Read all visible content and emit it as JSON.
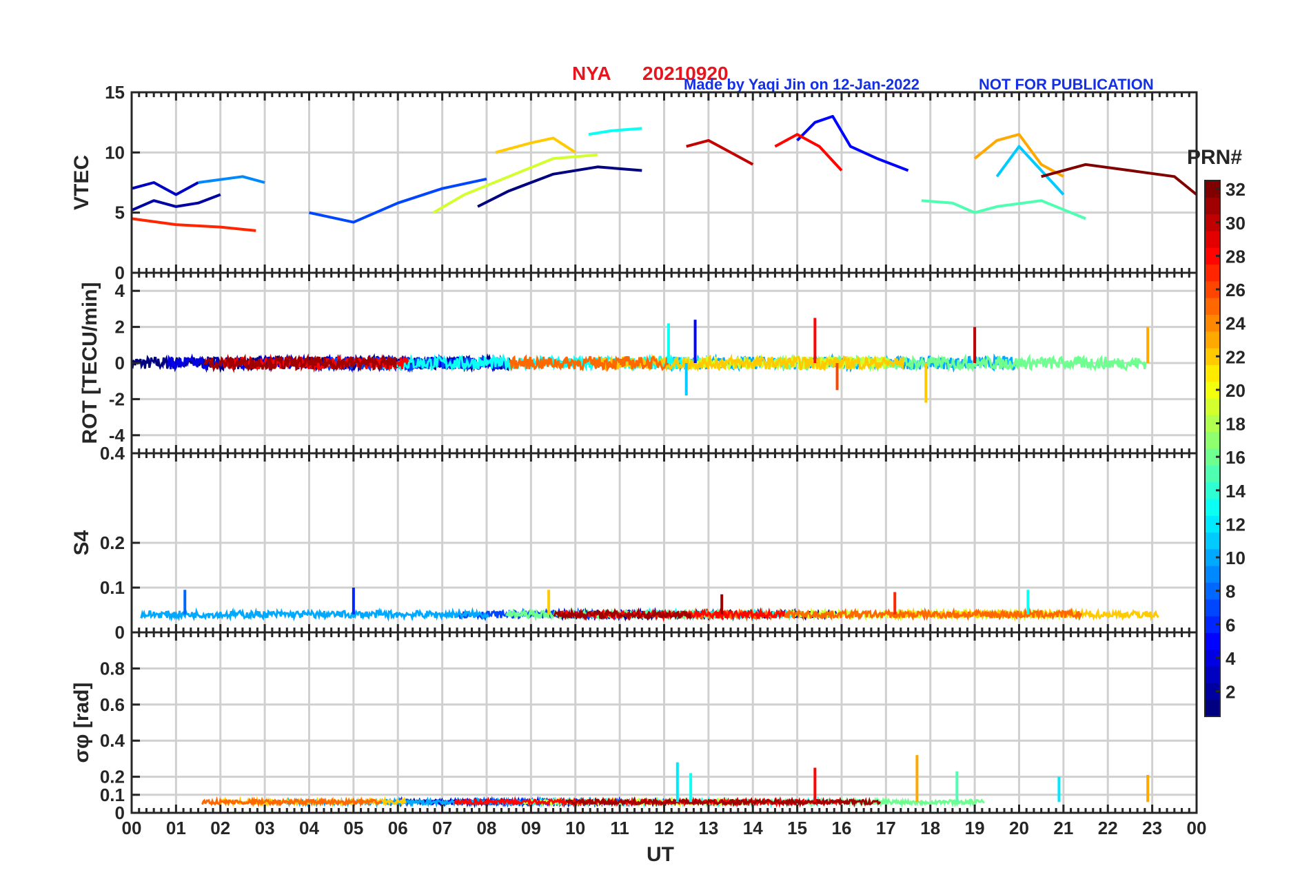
{
  "header": {
    "station": "NYA",
    "date": "20210920",
    "credit": "Made by Yaqi Jin on 12-Jan-2022",
    "notice": "NOT FOR PUBLICATION"
  },
  "colorbar": {
    "title": "PRN#",
    "range": [
      1,
      32
    ],
    "ticks": [
      "2",
      "4",
      "6",
      "8",
      "10",
      "12",
      "14",
      "16",
      "18",
      "20",
      "22",
      "24",
      "26",
      "28",
      "30",
      "32"
    ]
  },
  "chart_data": [
    {
      "type": "line",
      "panel": "VTEC",
      "ylabel": "VTEC",
      "ylim": [
        0,
        15
      ],
      "yticks": [
        "0",
        "5",
        "10",
        "15"
      ],
      "xlabel": "UT",
      "xlim": [
        0,
        24
      ],
      "xticks": [
        "00",
        "01",
        "02",
        "03",
        "04",
        "05",
        "06",
        "07",
        "08",
        "09",
        "10",
        "11",
        "12",
        "13",
        "14",
        "15",
        "16",
        "17",
        "18",
        "19",
        "20",
        "21",
        "22",
        "23",
        "00"
      ],
      "grid": true,
      "series": [
        {
          "name": "PRN 1",
          "prn": 1,
          "x": [
            7.8,
            8.5,
            9.5,
            10.5,
            11.5
          ],
          "values": [
            5.5,
            6.8,
            8.2,
            8.8,
            8.5
          ]
        },
        {
          "name": "PRN 2",
          "prn": 2,
          "x": [
            0.0,
            0.5,
            1.0,
            1.5,
            2.0
          ],
          "values": [
            5.2,
            6.0,
            5.5,
            5.8,
            6.5
          ]
        },
        {
          "name": "PRN 3",
          "prn": 3,
          "x": [
            0.0,
            0.5,
            1.0,
            1.5
          ],
          "values": [
            7.0,
            7.5,
            6.5,
            7.5
          ]
        },
        {
          "name": "PRN 5",
          "prn": 5,
          "x": [
            15.0,
            15.4,
            15.8,
            16.2,
            16.8,
            17.5
          ],
          "values": [
            11.0,
            12.5,
            13.0,
            10.5,
            9.5,
            8.5
          ]
        },
        {
          "name": "PRN 7",
          "prn": 7,
          "x": [
            4.0,
            5.0,
            6.0,
            7.0,
            8.0
          ],
          "values": [
            5.0,
            4.2,
            5.8,
            7.0,
            7.8
          ]
        },
        {
          "name": "PRN 9",
          "prn": 9,
          "x": [
            1.5,
            2.5,
            3.0
          ],
          "values": [
            7.5,
            8.0,
            7.5
          ]
        },
        {
          "name": "PRN 11",
          "prn": 11,
          "x": [
            19.5,
            20.0,
            20.5,
            21.0
          ],
          "values": [
            8.0,
            10.5,
            8.5,
            6.5
          ]
        },
        {
          "name": "PRN 13",
          "prn": 13,
          "x": [
            10.3,
            10.8,
            11.5
          ],
          "values": [
            11.5,
            11.8,
            12.0
          ]
        },
        {
          "name": "PRN 15",
          "prn": 15,
          "x": [
            17.8,
            18.5,
            19.0,
            19.5,
            20.5,
            21.5
          ],
          "values": [
            6.0,
            5.8,
            5.0,
            5.5,
            6.0,
            4.5
          ]
        },
        {
          "name": "PRN 19",
          "prn": 19,
          "x": [
            6.8,
            7.5,
            8.5,
            9.5,
            10.5
          ],
          "values": [
            5.0,
            6.5,
            8.0,
            9.5,
            9.8
          ]
        },
        {
          "name": "PRN 22",
          "prn": 22,
          "x": [
            8.2,
            9.0,
            9.5,
            10.0
          ],
          "values": [
            10.0,
            10.8,
            11.2,
            10.0
          ]
        },
        {
          "name": "PRN 23",
          "prn": 23,
          "x": [
            19.0,
            19.5,
            20.0,
            20.5,
            21.0
          ],
          "values": [
            9.5,
            11.0,
            11.5,
            9.0,
            8.0
          ]
        },
        {
          "name": "PRN 27",
          "prn": 27,
          "x": [
            0.0,
            1.0,
            2.0,
            2.8
          ],
          "values": [
            4.5,
            4.0,
            3.8,
            3.5
          ]
        },
        {
          "name": "PRN 28",
          "prn": 28,
          "x": [
            14.5,
            15.0,
            15.5,
            16.0
          ],
          "values": [
            10.5,
            11.5,
            10.5,
            8.5
          ]
        },
        {
          "name": "PRN 30",
          "prn": 30,
          "x": [
            12.5,
            13.0,
            13.5,
            14.0
          ],
          "values": [
            10.5,
            11.0,
            10.0,
            9.0
          ]
        },
        {
          "name": "PRN 32",
          "prn": 32,
          "x": [
            20.5,
            21.5,
            22.5,
            23.5,
            24.0
          ],
          "values": [
            8.0,
            9.0,
            8.5,
            8.0,
            6.5
          ]
        }
      ]
    },
    {
      "type": "line",
      "panel": "ROT",
      "ylabel": "ROT [TECU/min]",
      "ylim": [
        -5,
        5
      ],
      "yticks": [
        "-4",
        "-2",
        "0",
        "2",
        "4"
      ],
      "xlim": [
        0,
        24
      ],
      "grid": true,
      "note": "ROT fluctuates around 0 for all PRNs; largest spikes listed as x/values pairs",
      "series": [
        {
          "name": "PRN 5",
          "prn": 5,
          "x": [
            12.7
          ],
          "values": [
            2.4
          ]
        },
        {
          "name": "PRN 13",
          "prn": 13,
          "x": [
            12.1
          ],
          "values": [
            2.2
          ]
        },
        {
          "name": "PRN 11",
          "prn": 11,
          "x": [
            12.5
          ],
          "values": [
            -1.8
          ]
        },
        {
          "name": "PRN 28",
          "prn": 28,
          "x": [
            15.4
          ],
          "values": [
            2.5
          ]
        },
        {
          "name": "PRN 26",
          "prn": 26,
          "x": [
            15.9
          ],
          "values": [
            -1.5
          ]
        },
        {
          "name": "PRN 22",
          "prn": 22,
          "x": [
            17.9
          ],
          "values": [
            -2.2
          ]
        },
        {
          "name": "PRN 30",
          "prn": 30,
          "x": [
            19.0
          ],
          "values": [
            2.0
          ]
        },
        {
          "name": "PRN 23",
          "prn": 23,
          "x": [
            22.9
          ],
          "values": [
            2.0
          ]
        }
      ]
    },
    {
      "type": "line",
      "panel": "S4",
      "ylabel": "S4",
      "ylim": [
        0,
        0.4
      ],
      "yticks": [
        "0",
        "0.1",
        "0.2",
        "0.4"
      ],
      "xlim": [
        0,
        24
      ],
      "grid": true,
      "note": "S4 background level about 0.03-0.05 for all PRNs; peaks listed",
      "series": [
        {
          "name": "PRN 8",
          "prn": 8,
          "x": [
            1.2
          ],
          "values": [
            0.095
          ]
        },
        {
          "name": "PRN 6",
          "prn": 6,
          "x": [
            5.0
          ],
          "values": [
            0.1
          ]
        },
        {
          "name": "PRN 22",
          "prn": 22,
          "x": [
            9.4
          ],
          "values": [
            0.095
          ]
        },
        {
          "name": "PRN 31",
          "prn": 31,
          "x": [
            13.3
          ],
          "values": [
            0.085
          ]
        },
        {
          "name": "PRN 27",
          "prn": 27,
          "x": [
            17.2
          ],
          "values": [
            0.09
          ]
        },
        {
          "name": "PRN 13",
          "prn": 13,
          "x": [
            20.2
          ],
          "values": [
            0.095
          ]
        }
      ]
    },
    {
      "type": "line",
      "panel": "sigma_phi",
      "ylabel": "σφ [rad]",
      "ylim": [
        0,
        1
      ],
      "yticks": [
        "0",
        "0.1",
        "0.2",
        "0.4",
        "0.6",
        "0.8"
      ],
      "xlim": [
        0,
        24
      ],
      "grid": true,
      "note": "sigma phi background level about 0.05 for all PRNs; peaks listed",
      "series": [
        {
          "name": "PRN 12",
          "prn": 12,
          "x": [
            12.3
          ],
          "values": [
            0.28
          ]
        },
        {
          "name": "PRN 13",
          "prn": 13,
          "x": [
            12.6
          ],
          "values": [
            0.22
          ]
        },
        {
          "name": "PRN 28",
          "prn": 28,
          "x": [
            15.4
          ],
          "values": [
            0.25
          ]
        },
        {
          "name": "PRN 23",
          "prn": 23,
          "x": [
            17.7
          ],
          "values": [
            0.32
          ]
        },
        {
          "name": "PRN 15",
          "prn": 15,
          "x": [
            18.6
          ],
          "values": [
            0.23
          ]
        },
        {
          "name": "PRN 12",
          "prn": 12,
          "x": [
            20.9
          ],
          "values": [
            0.2
          ]
        },
        {
          "name": "PRN 23",
          "prn": 23,
          "x": [
            22.9
          ],
          "values": [
            0.21
          ]
        }
      ]
    }
  ]
}
